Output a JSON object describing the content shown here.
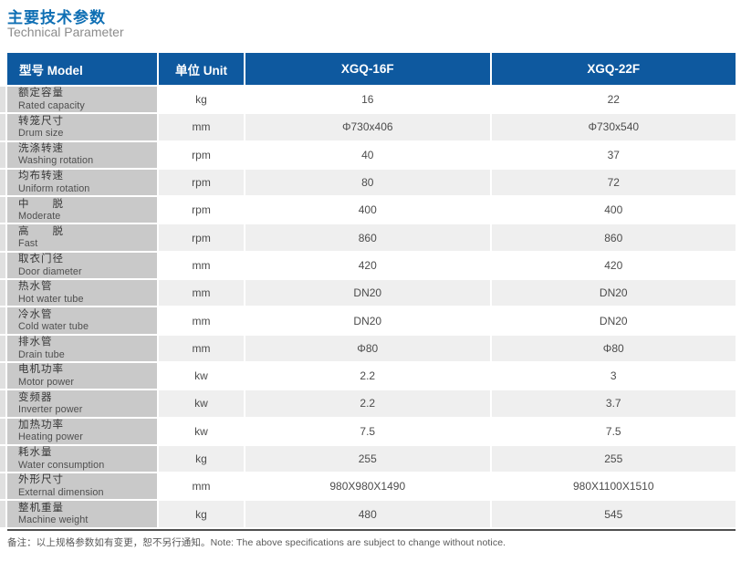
{
  "page": {
    "title_zh": "主要技术参数",
    "title_en": "Technical Parameter",
    "note": "备注：以上规格参数如有变更，恕不另行通知。Note: The above specifications are subject to change without notice."
  },
  "colors": {
    "title": "#0f6fb4",
    "subtitle": "#8b8b8b",
    "header_bg": "#0e599f",
    "header_text": "#ffffff",
    "label_bg": "#c9c9c9",
    "strip_bg": "#e0e0e0",
    "row_alt_bg": "#efefef",
    "bottom_border": "#4f4f4f"
  },
  "table": {
    "headers": {
      "model": "型号 Model",
      "unit": "单位 Unit",
      "col1": "XGQ-16F",
      "col2": "XGQ-22F"
    },
    "rows": [
      {
        "zh": "额定容量",
        "en": "Rated capacity",
        "unit": "kg",
        "v1": "16",
        "v2": "22"
      },
      {
        "zh": "转笼尺寸",
        "en": "Drum size",
        "unit": "mm",
        "v1": "Φ730x406",
        "v2": "Φ730x540"
      },
      {
        "zh": "洗涤转速",
        "en": "Washing rotation",
        "unit": "rpm",
        "v1": "40",
        "v2": "37"
      },
      {
        "zh": "均布转速",
        "en": "Uniform rotation",
        "unit": "rpm",
        "v1": "80",
        "v2": "72"
      },
      {
        "zh": "中　　脱",
        "en": "Moderate",
        "unit": "rpm",
        "v1": "400",
        "v2": "400"
      },
      {
        "zh": "高　　脱",
        "en": "Fast",
        "unit": "rpm",
        "v1": "860",
        "v2": "860"
      },
      {
        "zh": "取衣门径",
        "en": "Door diameter",
        "unit": "mm",
        "v1": "420",
        "v2": "420"
      },
      {
        "zh": "热水管",
        "en": "Hot water tube",
        "unit": "mm",
        "v1": "DN20",
        "v2": "DN20"
      },
      {
        "zh": "冷水管",
        "en": "Cold water tube",
        "unit": "mm",
        "v1": "DN20",
        "v2": "DN20"
      },
      {
        "zh": "排水管",
        "en": "Drain tube",
        "unit": "mm",
        "v1": "Φ80",
        "v2": "Φ80"
      },
      {
        "zh": "电机功率",
        "en": "Motor power",
        "unit": "kw",
        "v1": "2.2",
        "v2": "3"
      },
      {
        "zh": "变频器",
        "en": "Inverter power",
        "unit": "kw",
        "v1": "2.2",
        "v2": "3.7"
      },
      {
        "zh": "加热功率",
        "en": "Heating power",
        "unit": "kw",
        "v1": "7.5",
        "v2": "7.5"
      },
      {
        "zh": "耗水量",
        "en": "Water consumption",
        "unit": "kg",
        "v1": "255",
        "v2": "255"
      },
      {
        "zh": "外形尺寸",
        "en": "External dimension",
        "unit": "mm",
        "v1": "980X980X1490",
        "v2": "980X1100X1510"
      },
      {
        "zh": "整机重量",
        "en": "Machine weight",
        "unit": "kg",
        "v1": "480",
        "v2": "545"
      }
    ]
  }
}
